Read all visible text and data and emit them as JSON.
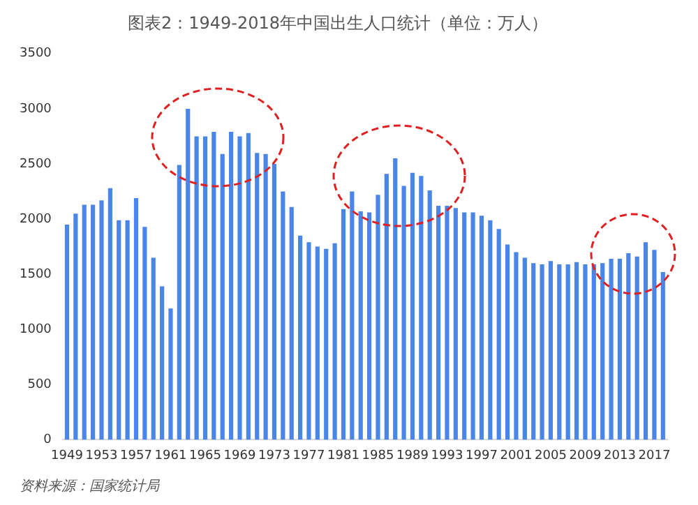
{
  "chart_data": {
    "type": "bar",
    "title": "图表2：1949-2018年中国出生人口统计（单位：万人）",
    "categories": [
      "1949",
      null,
      null,
      null,
      "1953",
      null,
      null,
      null,
      "1957",
      null,
      null,
      null,
      "1961",
      null,
      null,
      null,
      "1965",
      null,
      null,
      null,
      "1969",
      null,
      null,
      null,
      "1973",
      null,
      null,
      null,
      "1977",
      null,
      null,
      null,
      "1981",
      null,
      null,
      null,
      "1985",
      null,
      null,
      null,
      "1989",
      null,
      null,
      null,
      "1993",
      null,
      null,
      null,
      "1997",
      null,
      null,
      null,
      "2001",
      null,
      null,
      null,
      "2005",
      null,
      null,
      null,
      "2009",
      null,
      null,
      null,
      "2013",
      null,
      null,
      null,
      "2017",
      null
    ],
    "values": [
      1950,
      2050,
      2130,
      2130,
      2170,
      2280,
      1990,
      1990,
      2190,
      1930,
      1650,
      1390,
      1190,
      2490,
      3000,
      2750,
      2750,
      2790,
      2590,
      2790,
      2750,
      2780,
      2600,
      2590,
      2500,
      2250,
      2110,
      1850,
      1790,
      1750,
      1730,
      1780,
      2090,
      2250,
      2070,
      2060,
      2220,
      2410,
      2550,
      2300,
      2420,
      2390,
      2260,
      2120,
      2120,
      2100,
      2060,
      2060,
      2030,
      1990,
      1910,
      1770,
      1700,
      1650,
      1600,
      1590,
      1620,
      1590,
      1590,
      1610,
      1590,
      1590,
      1600,
      1640,
      1640,
      1690,
      1660,
      1790,
      1720,
      1520
    ],
    "color": "#4a86e8",
    "ylim": [
      0,
      3500
    ],
    "yticks": [
      0,
      500,
      1000,
      1500,
      2000,
      2500,
      3000,
      3500
    ],
    "grid": false,
    "legend": false,
    "annotations": [
      "资料来源：国家统计局"
    ]
  }
}
